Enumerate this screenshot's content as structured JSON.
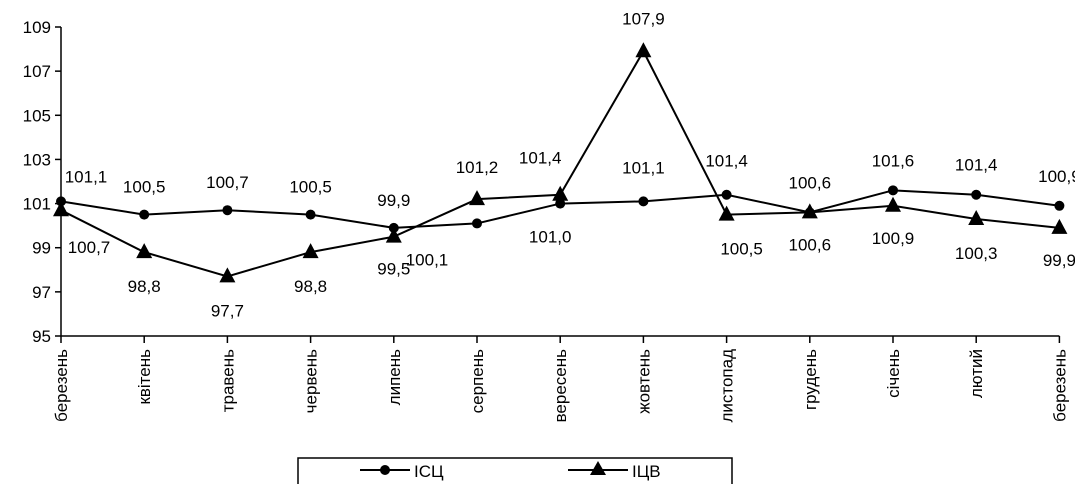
{
  "chart_data": {
    "type": "line",
    "categories": [
      "березень",
      "квітень",
      "травень",
      "червень",
      "липень",
      "серпень",
      "вересень",
      "жовтень",
      "листопад",
      "грудень",
      "січень",
      "лютий",
      "березень"
    ],
    "series": [
      {
        "name": "ІСЦ",
        "marker": "circle",
        "values": [
          101.1,
          100.5,
          100.7,
          100.5,
          99.9,
          100.1,
          101.0,
          101.1,
          101.4,
          100.6,
          101.6,
          101.4,
          100.9
        ],
        "labels": [
          "101,1",
          "100,5",
          "100,7",
          "100,5",
          "99,9",
          "100,1",
          "101,0",
          "101,1",
          "101,4",
          "100,6",
          "101,6",
          "101,4",
          "100,9"
        ]
      },
      {
        "name": "ІЦВ",
        "marker": "triangle",
        "values": [
          100.7,
          98.8,
          97.7,
          98.8,
          99.5,
          101.2,
          101.4,
          107.9,
          100.5,
          100.6,
          100.9,
          100.3,
          99.9
        ],
        "labels": [
          "100,7",
          "98,8",
          "97,7",
          "98,8",
          "99,5",
          "101,2",
          "101,4",
          "107,9",
          "100,5",
          "100,6",
          "100,9",
          "100,3",
          "99,9"
        ]
      }
    ],
    "y_ticks": [
      "95",
      "97",
      "99",
      "101",
      "103",
      "105",
      "107",
      "109"
    ],
    "y_tick_values": [
      95,
      97,
      99,
      101,
      103,
      105,
      107,
      109
    ],
    "ylim": [
      95,
      109
    ],
    "grid": false,
    "legend_position": "bottom-center",
    "line_color": "#000000"
  }
}
